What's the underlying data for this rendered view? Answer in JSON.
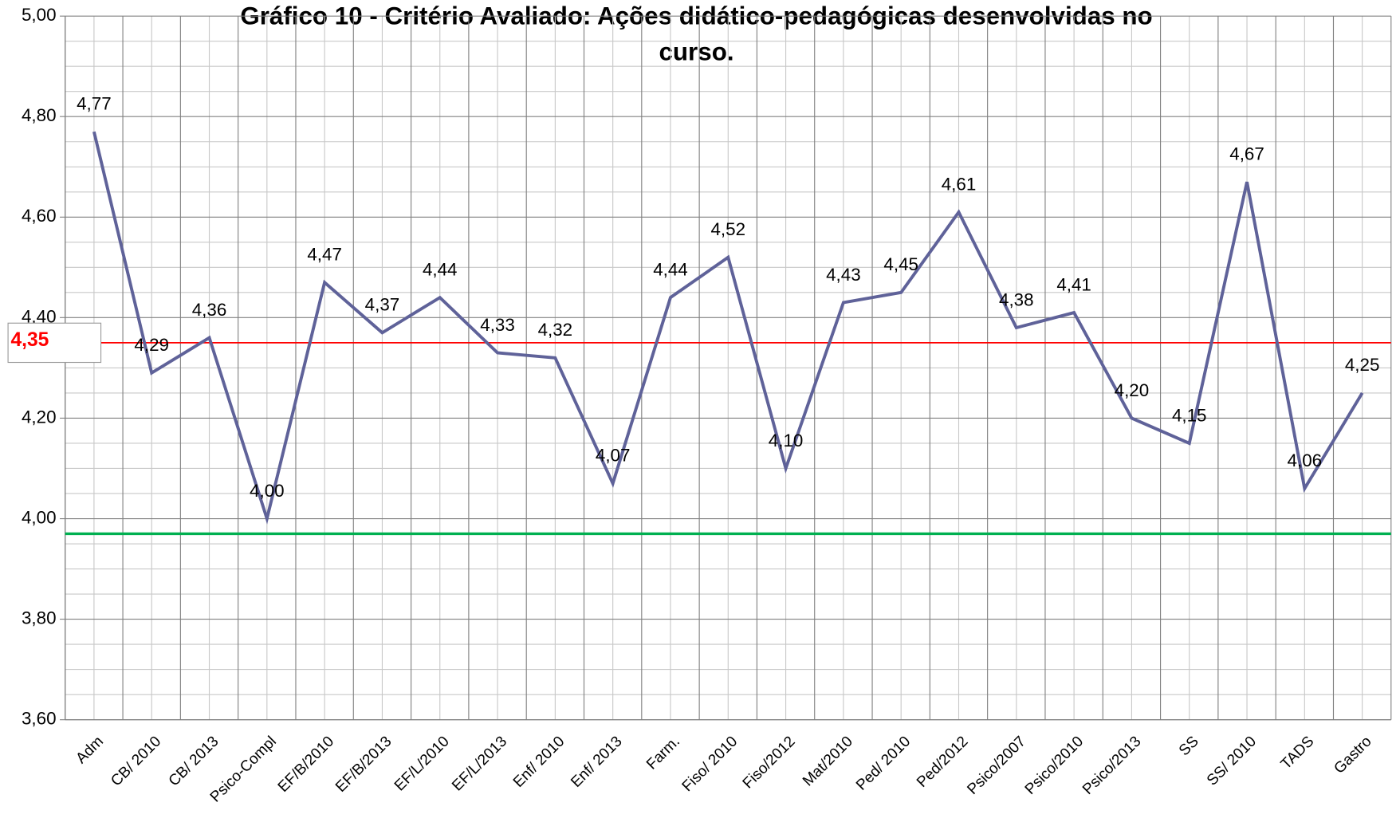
{
  "chart_data": {
    "type": "line",
    "title": [
      "Gráfico 10 - Critério Avaliado: Ações didático-pedagógicas desenvolvidas no",
      "curso."
    ],
    "categories": [
      "Adm",
      "CB/ 2010",
      "CB/ 2013",
      "Psico-Compl",
      "EF/B/2010",
      "EF/B/2013",
      "EF/L/2010",
      "EF/L/2013",
      "Enf/ 2010",
      "Enf/ 2013",
      "Farm.",
      "Fiso/ 2010",
      "Fiso/2012",
      "Mat/2010",
      "Ped/ 2010",
      "Ped/2012",
      "Psico/2007",
      "Psico/2010",
      "Psico/2013",
      "SS",
      "SS/ 2010",
      "TADS",
      "Gastro"
    ],
    "series": [
      {
        "color": "#5f6299",
        "values": [
          4.77,
          4.29,
          4.36,
          4.0,
          4.47,
          4.37,
          4.44,
          4.33,
          4.32,
          4.07,
          4.44,
          4.52,
          4.1,
          4.43,
          4.45,
          4.61,
          4.38,
          4.41,
          4.2,
          4.15,
          4.67,
          4.06,
          4.25
        ],
        "value_labels": [
          "4,77",
          "4,29",
          "4,36",
          "4,00",
          "4,47",
          "4,37",
          "4,44",
          "4,33",
          "4,32",
          "4,07",
          "4,44",
          "4,52",
          "4,10",
          "4,43",
          "4,45",
          "4,61",
          "4,38",
          "4,41",
          "4,20",
          "4,15",
          "4,67",
          "4,06",
          "4,25"
        ]
      }
    ],
    "ylim": [
      3.6,
      5.0
    ],
    "yticks": [
      {
        "value": 3.6,
        "label": "3,60"
      },
      {
        "value": 3.8,
        "label": "3,80"
      },
      {
        "value": 4.0,
        "label": "4,00"
      },
      {
        "value": 4.2,
        "label": "4,20"
      },
      {
        "value": 4.4,
        "label": "4,40"
      },
      {
        "value": 4.6,
        "label": "4,60"
      },
      {
        "value": 4.8,
        "label": "4,80"
      },
      {
        "value": 5.0,
        "label": "5,00"
      }
    ],
    "grid": true,
    "reference_lines": [
      {
        "value": 4.35,
        "label": "4,35",
        "color": "#ff0000"
      },
      {
        "value": 3.97,
        "color": "#00b050"
      }
    ]
  }
}
